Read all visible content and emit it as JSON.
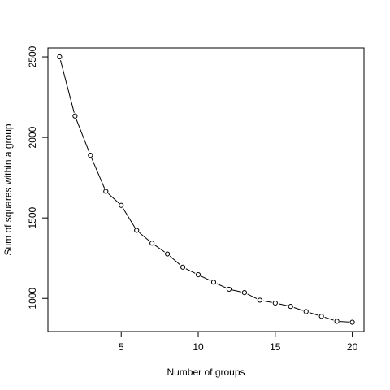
{
  "chart_data": {
    "type": "line",
    "title": "",
    "xlabel": "Number of groups",
    "ylabel": "Sum of squares within a group",
    "xlim": [
      0.24,
      20.76
    ],
    "ylim": [
      794.3,
      2555.7
    ],
    "x_ticks": [
      5,
      10,
      15,
      20
    ],
    "y_ticks": [
      1000,
      1500,
      2000,
      2500
    ],
    "x": [
      1,
      2,
      3,
      4,
      5,
      6,
      7,
      8,
      9,
      10,
      11,
      12,
      13,
      14,
      15,
      16,
      17,
      18,
      19,
      20
    ],
    "y": [
      2500,
      2133,
      1889,
      1665,
      1578,
      1423,
      1343,
      1276,
      1194,
      1147,
      1101,
      1057,
      1036,
      989,
      971,
      950,
      918,
      889,
      858,
      852
    ],
    "markers": "open-circle",
    "line_style": "solid",
    "grid": false,
    "legend": false,
    "colors": {
      "line": "#000000",
      "marker_stroke": "#000000",
      "marker_fill": "#ffffff",
      "background": "#ffffff"
    }
  }
}
